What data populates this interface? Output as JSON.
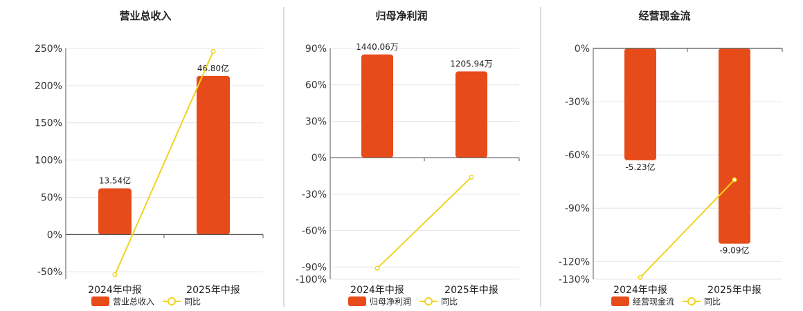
{
  "colors": {
    "bar": "#E84B1A",
    "line": "#F0D41E",
    "grid": "#E4E4EE",
    "axis": "#555555",
    "divider": "#BBBBBB"
  },
  "chart_data": [
    {
      "type": "bar",
      "title": "营业总收入",
      "categories": [
        "2024年中报",
        "2025年中报"
      ],
      "ylim": [
        -60,
        250
      ],
      "yticks": [
        250,
        200,
        150,
        100,
        50,
        0,
        -50
      ],
      "ytick_labels": [
        "250%",
        "200%",
        "150%",
        "100%",
        "50%",
        "0%",
        "-50%"
      ],
      "series": [
        {
          "name": "营业总收入",
          "kind": "bar",
          "values": [
            62,
            213
          ],
          "labels": [
            "13.54亿",
            "46.80亿"
          ]
        },
        {
          "name": "同比",
          "kind": "line",
          "values": [
            -54,
            246
          ]
        }
      ],
      "legend": {
        "position": "bottom",
        "items": [
          "营业总收入",
          "同比"
        ]
      },
      "grid": true
    },
    {
      "type": "bar",
      "title": "归母净利润",
      "categories": [
        "2024年中报",
        "2025年中报"
      ],
      "ylim": [
        -100,
        90
      ],
      "yticks": [
        90,
        60,
        30,
        0,
        -30,
        -60,
        -90,
        -100
      ],
      "ytick_labels": [
        "90%",
        "60%",
        "30%",
        "0%",
        "-30%",
        "-60%",
        "-90%",
        "-100%"
      ],
      "series": [
        {
          "name": "归母净利润",
          "kind": "bar",
          "values": [
            85,
            71
          ],
          "labels": [
            "1440.06万",
            "1205.94万"
          ]
        },
        {
          "name": "同比",
          "kind": "line",
          "values": [
            -91,
            -16
          ]
        }
      ],
      "legend": {
        "position": "bottom",
        "items": [
          "归母净利润",
          "同比"
        ]
      },
      "grid": true
    },
    {
      "type": "bar",
      "title": "经营现金流",
      "categories": [
        "2024年中报",
        "2025年中报"
      ],
      "ylim": [
        -130,
        0
      ],
      "yticks": [
        0,
        -30,
        -60,
        -90,
        -120,
        -130
      ],
      "ytick_labels": [
        "0%",
        "-30%",
        "-60%",
        "-90%",
        "-120%",
        "-130%"
      ],
      "series": [
        {
          "name": "经营现金流",
          "kind": "bar",
          "values": [
            -63,
            -110
          ],
          "labels": [
            "-5.23亿",
            "-9.09亿"
          ]
        },
        {
          "name": "同比",
          "kind": "line",
          "values": [
            -129,
            -74
          ]
        }
      ],
      "legend": {
        "position": "bottom",
        "items": [
          "经营现金流",
          "同比"
        ]
      },
      "grid": true
    }
  ]
}
